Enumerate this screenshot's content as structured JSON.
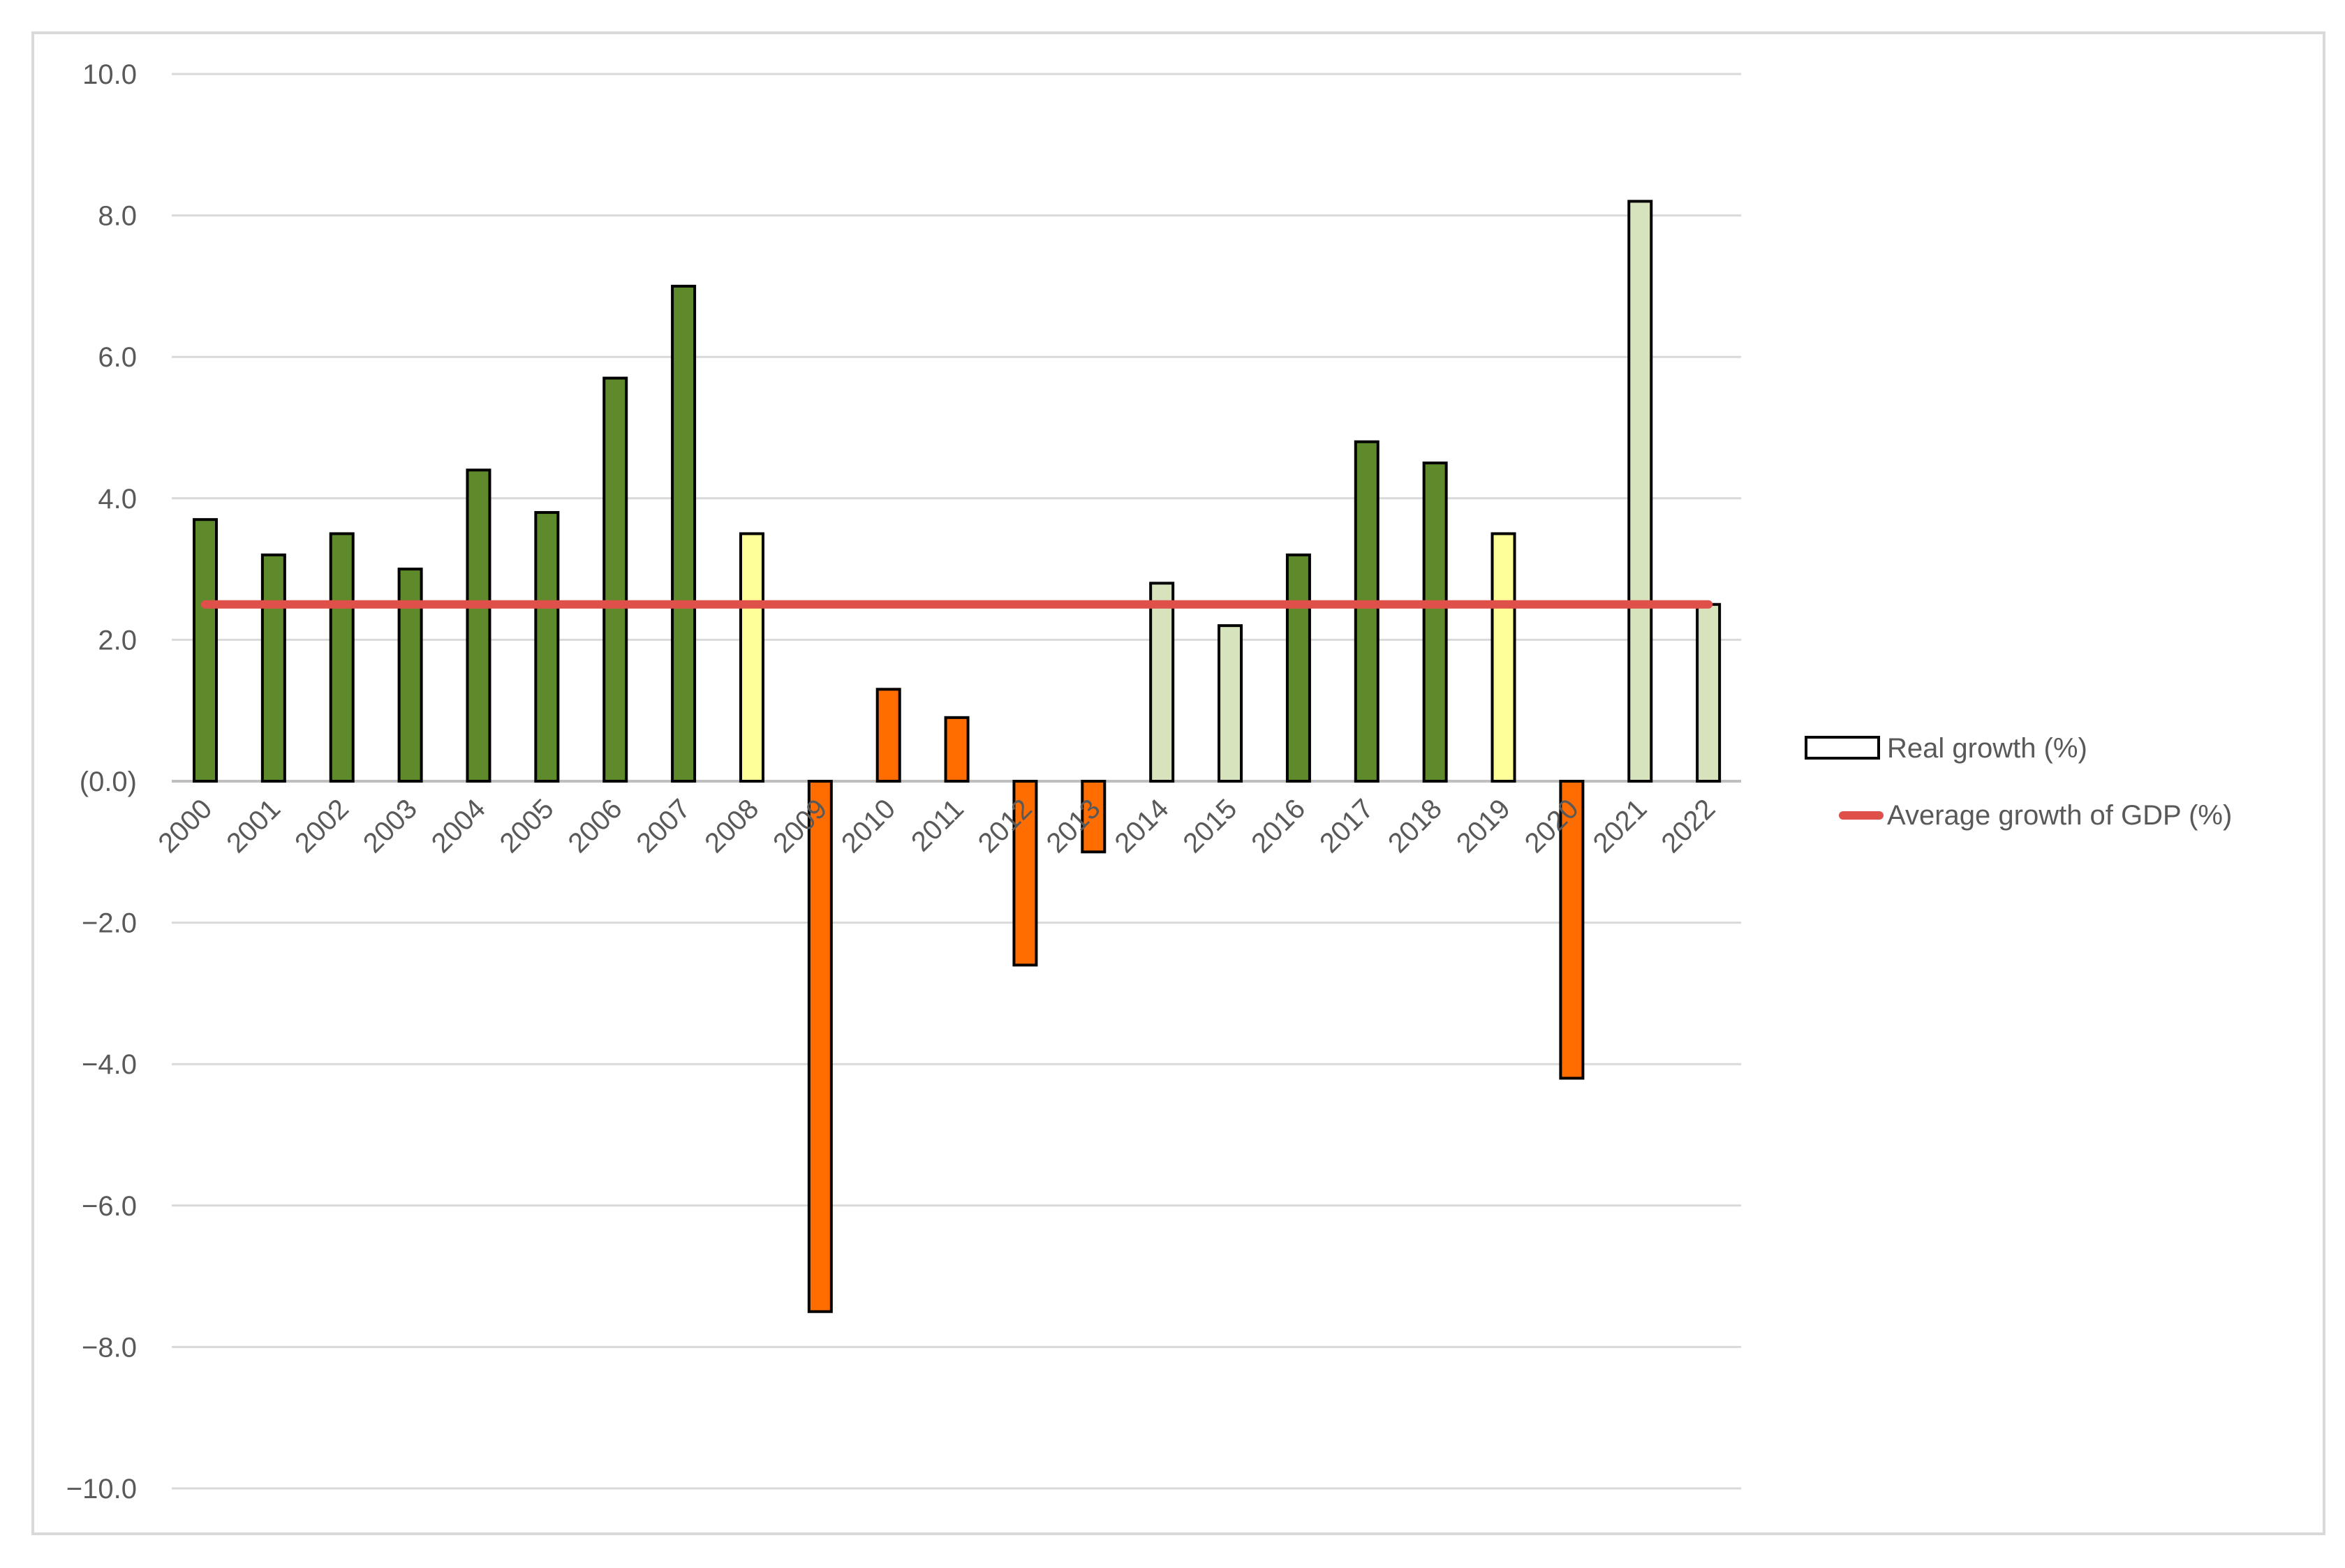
{
  "chart_data": {
    "type": "bar",
    "categories": [
      "2000",
      "2001",
      "2002",
      "2003",
      "2004",
      "2005",
      "2006",
      "2007",
      "2008",
      "2009",
      "2010",
      "2011",
      "2012",
      "2013",
      "2014",
      "2015",
      "2016",
      "2017",
      "2018",
      "2019",
      "2020",
      "2021",
      "2022"
    ],
    "series": [
      {
        "name": "Real growth (%)",
        "type": "bar",
        "values": [
          3.7,
          3.2,
          3.5,
          3.0,
          4.4,
          3.8,
          5.7,
          7.0,
          3.5,
          -7.5,
          1.3,
          0.9,
          -2.6,
          -1.0,
          2.8,
          2.2,
          3.2,
          4.8,
          4.5,
          3.5,
          -4.2,
          8.2,
          2.5
        ],
        "bar_colors": [
          "#5f8a2b",
          "#5f8a2b",
          "#5f8a2b",
          "#5f8a2b",
          "#5f8a2b",
          "#5f8a2b",
          "#5f8a2b",
          "#5f8a2b",
          "#ffff99",
          "#ff6d01",
          "#ff6d01",
          "#ff6d01",
          "#ff6d01",
          "#ff6d01",
          "#d6e3bc",
          "#d6e3bc",
          "#5f8a2b",
          "#5f8a2b",
          "#5f8a2b",
          "#ffff99",
          "#ff6d01",
          "#d6e3bc",
          "#d6e3bc"
        ]
      },
      {
        "name": "Average growth of GDP (%)",
        "type": "line",
        "value": 2.5,
        "color": "#e0504b"
      }
    ],
    "title": "",
    "xlabel": "",
    "ylabel": "",
    "ylim": [
      -10,
      10
    ],
    "yticks": [
      10,
      8,
      6,
      4,
      2,
      0,
      -2,
      -4,
      -6,
      -8,
      -10
    ],
    "ytick_labels": [
      "10.0",
      "8.0",
      "6.0",
      "4.0",
      "2.0",
      "(0.0)",
      "−2.0",
      "−4.0",
      "−6.0",
      "−8.0",
      "−10.0"
    ],
    "grid": true,
    "legend_position": "right",
    "legend_swatch_colors": {
      "bar": "#ffffff",
      "line": "#e0504b"
    },
    "colors": {
      "bar_outline": "#000000",
      "gridline": "#d9d9d9",
      "frame": "#d9d9d9",
      "tick_text": "#595959"
    }
  }
}
